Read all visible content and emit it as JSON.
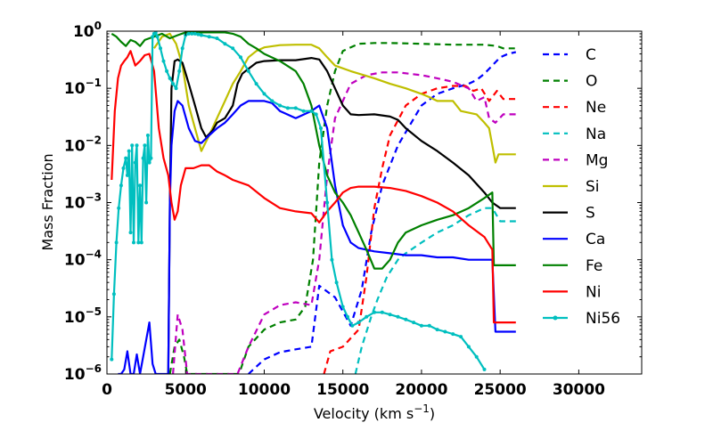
{
  "chart_data": {
    "type": "line",
    "xlabel": "Velocity (km s",
    "xlabel_sup": "−1",
    "xlabel_close": ")",
    "ylabel": "Mass Fraction",
    "xlim": [
      0,
      34000
    ],
    "ylim": [
      1e-06,
      1
    ],
    "yscale": "log",
    "grid": false,
    "legend_position": "right",
    "x_ticks": [
      0,
      5000,
      10000,
      15000,
      20000,
      25000,
      30000
    ],
    "x_tick_labels": [
      "0",
      "5000",
      "10000",
      "15000",
      "20000",
      "25000",
      "30000"
    ],
    "y_ticks": [
      1e-06,
      1e-05,
      0.0001,
      0.001,
      0.01,
      0.1,
      1
    ],
    "y_tick_labels": [
      [
        "10",
        "−6"
      ],
      [
        "10",
        "−5"
      ],
      [
        "10",
        "−4"
      ],
      [
        "10",
        "−3"
      ],
      [
        "10",
        "−2"
      ],
      [
        "10",
        "−1"
      ],
      [
        "10",
        "0"
      ]
    ],
    "series": [
      {
        "name": "C",
        "color": "#0000ff",
        "style": "dashed",
        "x": [
          9000,
          10000,
          11000,
          12000,
          13000,
          13500,
          14500,
          15500,
          16200,
          16800,
          17500,
          18500,
          20000,
          21000,
          22000,
          23000,
          23500,
          24000,
          24500,
          25000,
          25500,
          26000
        ],
        "y": [
          1e-06,
          1.8e-06,
          2.4e-06,
          2.7e-06,
          3e-06,
          3.5e-05,
          2.2e-05,
          7e-06,
          3e-05,
          0.0003,
          0.002,
          0.01,
          0.05,
          0.08,
          0.1,
          0.12,
          0.14,
          0.18,
          0.25,
          0.35,
          0.4,
          0.43
        ]
      },
      {
        "name": "O",
        "color": "#008000",
        "style": "dashed",
        "x": [
          4000,
          4300,
          4600,
          4900,
          5100,
          8400,
          9000,
          10000,
          11000,
          12000,
          12600,
          13100,
          13500,
          14000,
          14500,
          15000,
          16000,
          17000,
          18000,
          20000,
          22000,
          24000,
          24800,
          25200,
          26000
        ],
        "y": [
          1e-06,
          3e-06,
          4e-06,
          2e-06,
          1e-06,
          1e-06,
          3e-06,
          6e-06,
          8e-06,
          9e-06,
          1.5e-05,
          0.0001,
          0.005,
          0.05,
          0.2,
          0.45,
          0.6,
          0.62,
          0.62,
          0.6,
          0.58,
          0.58,
          0.55,
          0.5,
          0.5
        ]
      },
      {
        "name": "Ne",
        "color": "#ff0000",
        "style": "dashed",
        "x": [
          13800,
          14200,
          15000,
          16000,
          16500,
          17000,
          17500,
          18000,
          19000,
          20000,
          21000,
          22000,
          22800,
          23300,
          23800,
          24300,
          24800,
          25200,
          26000
        ],
        "y": [
          1e-06,
          2.5e-06,
          3e-06,
          6e-06,
          5e-05,
          0.0008,
          0.004,
          0.015,
          0.05,
          0.08,
          0.1,
          0.11,
          0.11,
          0.09,
          0.1,
          0.06,
          0.09,
          0.065,
          0.065
        ]
      },
      {
        "name": "Na",
        "color": "#00bfbf",
        "style": "dashed",
        "x": [
          15800,
          16200,
          16800,
          17200,
          17800,
          18500,
          19000,
          20000,
          21000,
          22000,
          23000,
          24000,
          24500,
          25000,
          26000
        ],
        "y": [
          1e-06,
          3e-06,
          1e-05,
          2e-05,
          5e-05,
          0.0001,
          0.00013,
          0.0002,
          0.0003,
          0.0004,
          0.0006,
          0.0008,
          0.0008,
          0.00047,
          0.00047
        ]
      },
      {
        "name": "Mg",
        "color": "#bf00bf",
        "style": "dashed",
        "x": [
          4200,
          4500,
          4800,
          5100,
          8300,
          9000,
          10000,
          11000,
          12000,
          13000,
          13500,
          14000,
          14500,
          15500,
          16500,
          17500,
          18500,
          20000,
          21000,
          22000,
          23000,
          23500,
          24000,
          24300,
          24700,
          25200,
          26000
        ],
        "y": [
          1e-06,
          1.1e-05,
          6e-06,
          1e-06,
          1e-06,
          3e-06,
          1.1e-05,
          1.6e-05,
          1.8e-05,
          1.6e-05,
          0.0001,
          0.003,
          0.03,
          0.12,
          0.17,
          0.19,
          0.19,
          0.17,
          0.15,
          0.13,
          0.1,
          0.06,
          0.07,
          0.03,
          0.025,
          0.035,
          0.035
        ]
      },
      {
        "name": "Si",
        "color": "#bfbf00",
        "style": "solid",
        "x": [
          3000,
          3500,
          4000,
          4400,
          4800,
          5200,
          5600,
          6000,
          6500,
          7000,
          7500,
          8000,
          8500,
          9000,
          9500,
          10000,
          11000,
          12000,
          13000,
          13500,
          14000,
          14500,
          15500,
          17000,
          18000,
          19000,
          20000,
          20500,
          21000,
          22000,
          22500,
          23500,
          24000,
          24300,
          24500,
          24700,
          24900,
          26000
        ],
        "y": [
          0.5,
          0.8,
          0.9,
          0.6,
          0.25,
          0.05,
          0.02,
          0.008,
          0.015,
          0.03,
          0.06,
          0.12,
          0.2,
          0.35,
          0.45,
          0.52,
          0.57,
          0.58,
          0.58,
          0.5,
          0.35,
          0.25,
          0.2,
          0.15,
          0.12,
          0.1,
          0.08,
          0.07,
          0.06,
          0.06,
          0.04,
          0.035,
          0.025,
          0.02,
          0.01,
          0.005,
          0.007,
          0.007
        ]
      },
      {
        "name": "S",
        "color": "#000000",
        "style": "solid",
        "x": [
          3900,
          4000,
          4100,
          4300,
          4500,
          4800,
          5200,
          5600,
          6000,
          6300,
          6700,
          7000,
          7500,
          8000,
          8300,
          8600,
          9000,
          9500,
          10000,
          11000,
          12000,
          13000,
          13500,
          14000,
          14500,
          15000,
          15500,
          16000,
          17000,
          18000,
          18500,
          19000,
          20000,
          21000,
          22000,
          23000,
          24000,
          24500,
          25000,
          26000
        ],
        "y": [
          1e-06,
          0.001,
          0.1,
          0.3,
          0.32,
          0.28,
          0.12,
          0.05,
          0.02,
          0.014,
          0.018,
          0.025,
          0.03,
          0.05,
          0.12,
          0.18,
          0.22,
          0.28,
          0.3,
          0.31,
          0.31,
          0.34,
          0.32,
          0.2,
          0.1,
          0.05,
          0.035,
          0.034,
          0.035,
          0.032,
          0.028,
          0.02,
          0.012,
          0.008,
          0.005,
          0.003,
          0.0015,
          0.001,
          0.0008,
          0.0008
        ]
      },
      {
        "name": "Ca",
        "color": "#0000ff",
        "style": "solid",
        "x": [
          700,
          900,
          1100,
          1300,
          1500,
          1700,
          1900,
          2100,
          2300,
          2500,
          2700,
          2900,
          3100,
          3300,
          3500,
          3700,
          3900,
          4000,
          4100,
          4300,
          4500,
          4800,
          5200,
          5600,
          6000,
          6500,
          7000,
          7500,
          8000,
          8500,
          9000,
          10000,
          10500,
          11000,
          12000,
          13000,
          13500,
          14000,
          14500,
          15000,
          15500,
          16000,
          17000,
          18000,
          19000,
          20000,
          21000,
          22000,
          23000,
          24000,
          24500,
          24700,
          25000,
          26000
        ],
        "y": [
          1e-06,
          1e-06,
          1.2e-06,
          2.5e-06,
          1e-06,
          1e-06,
          2.2e-06,
          1e-06,
          2e-06,
          4e-06,
          8e-06,
          1.5e-06,
          1e-06,
          1e-06,
          1e-06,
          1e-06,
          1e-06,
          0.001,
          0.01,
          0.04,
          0.06,
          0.05,
          0.02,
          0.012,
          0.011,
          0.015,
          0.02,
          0.025,
          0.035,
          0.05,
          0.06,
          0.06,
          0.055,
          0.04,
          0.03,
          0.04,
          0.05,
          0.02,
          0.002,
          0.0004,
          0.0002,
          0.00016,
          0.00014,
          0.00013,
          0.00012,
          0.00012,
          0.00011,
          0.00011,
          0.0001,
          0.0001,
          0.0001,
          5.5e-06,
          5.5e-06,
          5.5e-06
        ]
      },
      {
        "name": "Fe",
        "color": "#008000",
        "style": "solid",
        "x": [
          300,
          600,
          900,
          1200,
          1500,
          1800,
          2100,
          2400,
          2700,
          3000,
          3500,
          4000,
          4500,
          5000,
          5500,
          6000,
          6500,
          7000,
          7500,
          8000,
          8500,
          9000,
          9500,
          10000,
          11000,
          12000,
          12500,
          13000,
          13500,
          14000,
          14500,
          15000,
          15500,
          16000,
          16500,
          17000,
          17500,
          18000,
          18500,
          19000,
          20000,
          21000,
          22000,
          23000,
          24000,
          24500,
          24600,
          25000,
          26000
        ],
        "y": [
          0.9,
          0.8,
          0.65,
          0.55,
          0.7,
          0.65,
          0.55,
          0.7,
          0.75,
          0.8,
          0.9,
          0.75,
          0.85,
          0.95,
          0.95,
          0.95,
          0.95,
          0.95,
          0.95,
          0.9,
          0.8,
          0.6,
          0.5,
          0.4,
          0.3,
          0.2,
          0.12,
          0.05,
          0.01,
          0.003,
          0.0015,
          0.001,
          0.0006,
          0.0003,
          0.00015,
          7e-05,
          7e-05,
          0.0001,
          0.0002,
          0.0003,
          0.0004,
          0.0005,
          0.0006,
          0.0008,
          0.0012,
          0.0015,
          8e-05,
          8e-05,
          8e-05
        ]
      },
      {
        "name": "Ni",
        "color": "#ff0000",
        "style": "solid",
        "x": [
          300,
          500,
          700,
          900,
          1100,
          1300,
          1500,
          1800,
          2100,
          2400,
          2700,
          3000,
          3300,
          3600,
          3900,
          4100,
          4300,
          4500,
          4700,
          5000,
          5500,
          6000,
          6500,
          7000,
          7500,
          8000,
          9000,
          10000,
          11000,
          12000,
          13000,
          13500,
          14000,
          14500,
          15000,
          15500,
          16000,
          16500,
          17000,
          18000,
          19000,
          20000,
          21000,
          22000,
          23000,
          24000,
          24500,
          24600,
          25000,
          26000
        ],
        "y": [
          0.0025,
          0.04,
          0.15,
          0.25,
          0.3,
          0.35,
          0.45,
          0.25,
          0.3,
          0.38,
          0.4,
          0.2,
          0.02,
          0.006,
          0.003,
          0.001,
          0.0005,
          0.0007,
          0.002,
          0.004,
          0.004,
          0.0045,
          0.0045,
          0.0035,
          0.003,
          0.0025,
          0.002,
          0.0012,
          0.0008,
          0.0007,
          0.00065,
          0.00045,
          0.0007,
          0.001,
          0.0015,
          0.0018,
          0.0019,
          0.0019,
          0.0019,
          0.0018,
          0.0016,
          0.0013,
          0.001,
          0.0007,
          0.0004,
          0.00025,
          0.00015,
          8e-06,
          8e-06,
          8e-06
        ]
      },
      {
        "name": "Ni56",
        "color": "#00bfbf",
        "style": "solid-dot",
        "x": [
          300,
          450,
          600,
          750,
          900,
          1050,
          1200,
          1300,
          1400,
          1500,
          1600,
          1700,
          1800,
          1900,
          2000,
          2100,
          2200,
          2300,
          2400,
          2500,
          2600,
          2700,
          2800,
          2900,
          3000,
          3100,
          3200,
          3400,
          3600,
          3800,
          4000,
          4200,
          4400,
          4600,
          4800,
          5000,
          5200,
          5400,
          5600,
          5800,
          6000,
          6500,
          7000,
          7500,
          8000,
          8500,
          9000,
          9500,
          10000,
          10500,
          11000,
          11500,
          12000,
          12500,
          13000,
          13300,
          13600,
          14000,
          14300,
          14600,
          15000,
          15300,
          15600,
          16000,
          16500,
          17000,
          17500,
          18000,
          18500,
          19000,
          19500,
          20000,
          20500,
          21000,
          21500,
          22000,
          22500,
          23000,
          23500,
          24000
        ],
        "y": [
          1.8e-06,
          2.5e-05,
          0.0002,
          0.0008,
          0.002,
          0.004,
          0.006,
          0.003,
          0.008,
          0.0003,
          0.01,
          0.0002,
          0.005,
          0.01,
          0.0002,
          0.002,
          0.0002,
          0.006,
          0.01,
          0.001,
          0.015,
          0.005,
          0.006,
          0.8,
          0.9,
          0.95,
          0.8,
          0.5,
          0.3,
          0.2,
          0.15,
          0.12,
          0.1,
          0.2,
          0.5,
          0.85,
          0.9,
          0.9,
          0.9,
          0.88,
          0.85,
          0.8,
          0.75,
          0.6,
          0.5,
          0.35,
          0.2,
          0.12,
          0.08,
          0.06,
          0.05,
          0.045,
          0.045,
          0.04,
          0.04,
          0.035,
          0.02,
          0.001,
          0.0001,
          4e-05,
          1.5e-05,
          1e-05,
          7e-06,
          8e-06,
          1e-05,
          1.2e-05,
          1.2e-05,
          1.1e-05,
          1e-05,
          9e-06,
          8e-06,
          7e-06,
          7e-06,
          6e-06,
          5.5e-06,
          5e-06,
          4.5e-06,
          3e-06,
          2e-06,
          1.2e-06
        ]
      }
    ]
  }
}
